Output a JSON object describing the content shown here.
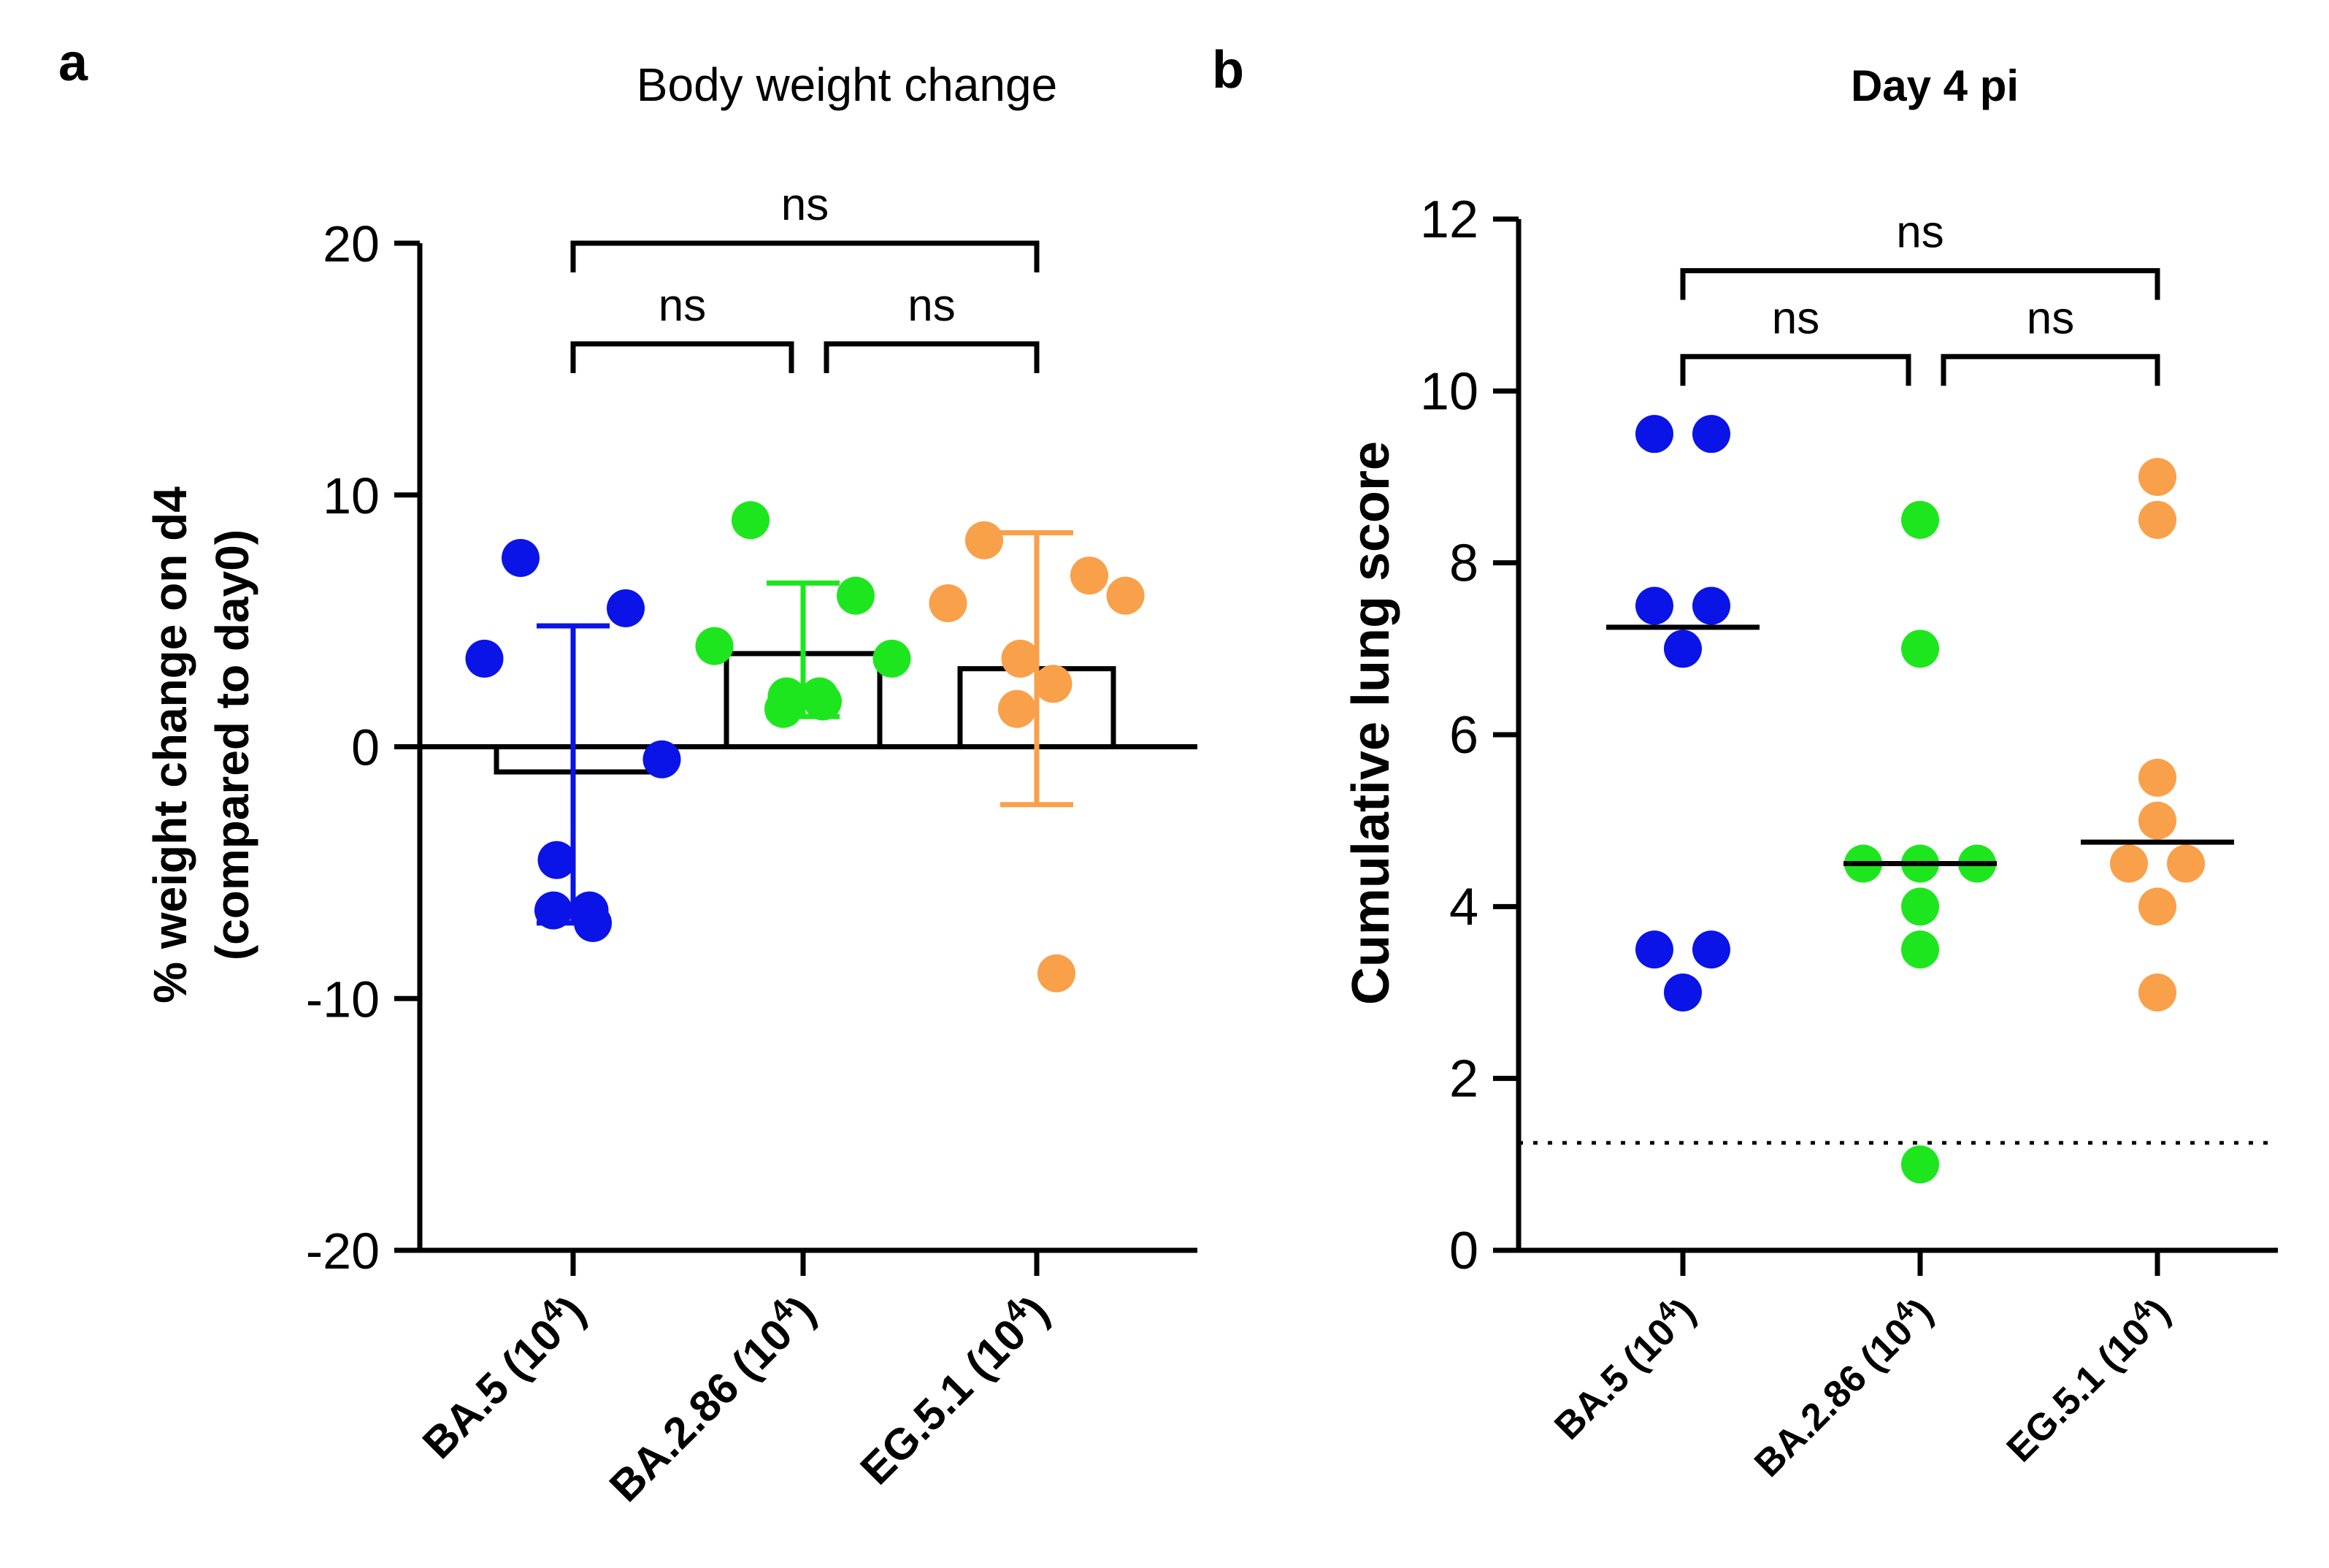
{
  "panel_a_label": "a",
  "panel_b_label": "b",
  "chart_data": [
    {
      "id": "panel_a",
      "type": "scatter-bar",
      "title": "Body weight change",
      "ylabel_line1": "% weight change on d4",
      "ylabel_line2": "(compared to day0)",
      "ylim": [
        -20,
        20
      ],
      "yticks": [
        -20,
        -10,
        0,
        10,
        20
      ],
      "ytick_labels": [
        "-20",
        "-10",
        "0",
        "10",
        "20"
      ],
      "categories": [
        {
          "label": "BA.5 (10",
          "exp": "4",
          "close": ")"
        },
        {
          "label": "BA.2.86 (10",
          "exp": "4",
          "close": ")"
        },
        {
          "label": "EG.5.1 (10",
          "exp": "4",
          "close": ")"
        }
      ],
      "series": [
        {
          "name": "BA.5 (10^4)",
          "color": "#0a14e6",
          "points": [
            7.5,
            5.5,
            3.5,
            -0.5,
            -4.5,
            -6.5,
            -6.5,
            -7.0
          ],
          "bar": -1.0,
          "err_low": -7.0,
          "err_high": 4.8
        },
        {
          "name": "BA.2.86 (10^4)",
          "color": "#1ee61e",
          "points": [
            9.0,
            6.0,
            4.0,
            3.5,
            2.0,
            2.0,
            1.5,
            1.8
          ],
          "bar": 3.7,
          "err_low": 1.2,
          "err_high": 6.5
        },
        {
          "name": "EG.5.1 (10^4)",
          "color": "#f9a04a",
          "points": [
            8.2,
            6.8,
            5.7,
            6.0,
            3.5,
            2.5,
            1.5,
            -9.0
          ],
          "bar": 3.1,
          "err_low": -2.3,
          "err_high": 8.5
        }
      ],
      "comparisons": [
        {
          "from": 0,
          "to": 2,
          "level": 20,
          "label": "ns"
        },
        {
          "from": 0,
          "to": 1,
          "level": 16,
          "label": "ns"
        },
        {
          "from": 1,
          "to": 2,
          "level": 16,
          "label": "ns"
        }
      ]
    },
    {
      "id": "panel_b",
      "type": "scatter",
      "title": "Day 4 pi",
      "ylabel": "Cumulative lung score",
      "ylim": [
        0,
        12
      ],
      "yticks": [
        0,
        2,
        4,
        6,
        8,
        10,
        12
      ],
      "ytick_labels": [
        "0",
        "2",
        "4",
        "6",
        "8",
        "10",
        "12"
      ],
      "reference_line": 1.25,
      "categories": [
        {
          "label": "BA.5 (10",
          "exp": "4",
          "close": ")"
        },
        {
          "label": "BA.2.86 (10",
          "exp": "4",
          "close": ")"
        },
        {
          "label": "EG.5.1 (10",
          "exp": "4",
          "close": ")"
        }
      ],
      "series": [
        {
          "name": "BA.5 (10^4)",
          "color": "#0a14e6",
          "points": [
            9.5,
            9.5,
            7.5,
            7.5,
            7.0,
            3.5,
            3.5,
            3.0
          ],
          "median": 7.25
        },
        {
          "name": "BA.2.86 (10^4)",
          "color": "#1ee61e",
          "points": [
            8.5,
            7.0,
            4.5,
            4.5,
            4.5,
            4.0,
            3.5,
            1.0
          ],
          "median": 4.5
        },
        {
          "name": "EG.5.1 (10^4)",
          "color": "#f9a04a",
          "points": [
            9.0,
            8.5,
            5.5,
            5.0,
            4.5,
            4.5,
            4.0,
            3.0
          ],
          "median": 4.75
        }
      ],
      "comparisons": [
        {
          "from": 0,
          "to": 2,
          "level": 11.4,
          "label": "ns"
        },
        {
          "from": 0,
          "to": 1,
          "level": 10.4,
          "label": "ns"
        },
        {
          "from": 1,
          "to": 2,
          "level": 10.4,
          "label": "ns"
        }
      ]
    }
  ]
}
